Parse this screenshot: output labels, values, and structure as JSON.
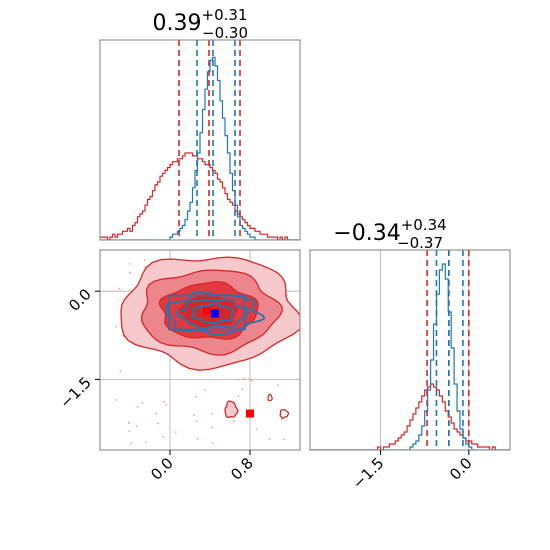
{
  "chart_data": [
    {
      "type": "histogram",
      "panel": "marginal-x",
      "title": {
        "base": "0.39",
        "sup": "+0.31",
        "sub": "−0.30"
      },
      "xlim": [
        -0.7,
        1.3
      ],
      "series": [
        {
          "name": "",
          "color": "#1f77b4",
          "median": 0.43,
          "lower": 0.27,
          "upper": 0.65,
          "counts": [
            0,
            0,
            0,
            0,
            0,
            0,
            0,
            0,
            0,
            0,
            0,
            0,
            0,
            0,
            0,
            0,
            0,
            0,
            0,
            0,
            0,
            0,
            0,
            0,
            0,
            0,
            0,
            0,
            1,
            2,
            2,
            3,
            4,
            5,
            7,
            10,
            13,
            18,
            24,
            30,
            37,
            45,
            52,
            58,
            62,
            63,
            60,
            55,
            48,
            42,
            36,
            30,
            23,
            17,
            12,
            8,
            5,
            4,
            3,
            2,
            1,
            1,
            0,
            0,
            0,
            0,
            0,
            0,
            0,
            0,
            0,
            0,
            0,
            0,
            0,
            0,
            0,
            0,
            0,
            0
          ]
        },
        {
          "name": "",
          "color": "#d62728",
          "median": 0.39,
          "lower": 0.09,
          "upper": 0.7,
          "counts": [
            1,
            1,
            1,
            0,
            1,
            2,
            1,
            2,
            2,
            3,
            3,
            4,
            3,
            5,
            6,
            8,
            9,
            10,
            12,
            14,
            15,
            17,
            19,
            20,
            22,
            23,
            24,
            25,
            26,
            27,
            27,
            28,
            28,
            29,
            30,
            30,
            30,
            29,
            29,
            28,
            28,
            27,
            26,
            26,
            25,
            24,
            23,
            21,
            20,
            18,
            16,
            14,
            13,
            12,
            10,
            9,
            8,
            7,
            6,
            5,
            4,
            4,
            3,
            3,
            2,
            2,
            2,
            1,
            1,
            1,
            1,
            0,
            1,
            0,
            1,
            0,
            0,
            0,
            0,
            0
          ]
        }
      ]
    },
    {
      "type": "histogram",
      "panel": "marginal-y",
      "title": {
        "base": "−0.34",
        "sup": "+0.34",
        "sub": "−0.37"
      },
      "xlim": [
        -2.7,
        0.7
      ],
      "xticks": [
        -1.5,
        0.0
      ],
      "xticklabels": [
        "−1.5",
        "0.0"
      ],
      "series": [
        {
          "name": "",
          "color": "#1f77b4",
          "median": -0.34,
          "lower": -0.55,
          "upper": -0.1,
          "counts": [
            0,
            0,
            0,
            0,
            0,
            0,
            0,
            0,
            0,
            0,
            0,
            0,
            0,
            0,
            0,
            0,
            0,
            0,
            0,
            0,
            0,
            0,
            0,
            0,
            0,
            0,
            0,
            0,
            0,
            0,
            0,
            0,
            0,
            0,
            1,
            2,
            3,
            5,
            8,
            13,
            20,
            30,
            42,
            52,
            60,
            62,
            57,
            46,
            34,
            22,
            13,
            7,
            4,
            2,
            1,
            0,
            0,
            0,
            0,
            0,
            0,
            0,
            0,
            0,
            0,
            0,
            0,
            0
          ]
        },
        {
          "name": "",
          "color": "#d62728",
          "median": -0.34,
          "lower": -0.71,
          "upper": 0.0,
          "counts": [
            0,
            0,
            0,
            0,
            0,
            0,
            0,
            0,
            0,
            0,
            0,
            0,
            0,
            0,
            0,
            0,
            0,
            0,
            0,
            0,
            0,
            0,
            0,
            1,
            0,
            1,
            1,
            2,
            2,
            3,
            4,
            5,
            6,
            8,
            10,
            12,
            14,
            16,
            18,
            20,
            21,
            22,
            21,
            20,
            18,
            16,
            13,
            11,
            9,
            7,
            6,
            5,
            4,
            3,
            3,
            2,
            2,
            1,
            1,
            1,
            1,
            0,
            1,
            0,
            0,
            0,
            0,
            0
          ]
        }
      ]
    },
    {
      "type": "contour",
      "panel": "joint",
      "xlim": [
        -0.7,
        1.3
      ],
      "ylim": [
        -2.7,
        0.7
      ],
      "xticks": [
        0.0,
        0.8
      ],
      "xticklabels": [
        "0.0",
        "0.8"
      ],
      "yticks": [
        -1.5,
        0.0
      ],
      "yticklabels": [
        "−1.5",
        "0.0"
      ],
      "series": [
        {
          "name": "",
          "color": "#d62728",
          "center": [
            0.39,
            -0.34
          ],
          "markers": [
            [
              0.37,
              -0.34
            ],
            [
              0.8,
              -2.08
            ]
          ]
        },
        {
          "name": "",
          "color": "#1f77b4",
          "center": [
            0.43,
            -0.38
          ],
          "markers": [
            [
              0.45,
              -0.38
            ]
          ]
        }
      ]
    }
  ]
}
